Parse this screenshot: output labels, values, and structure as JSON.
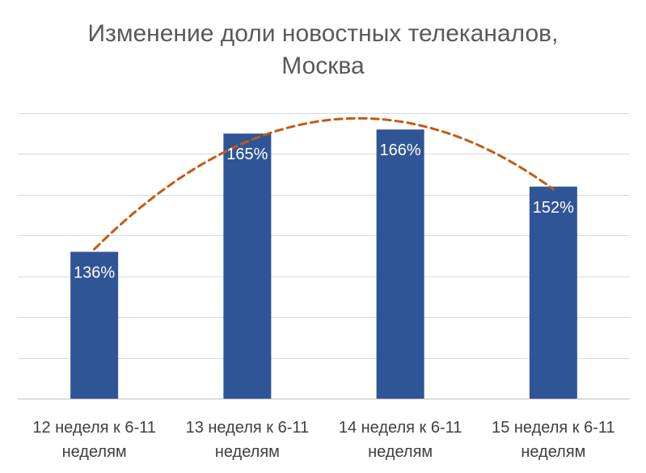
{
  "chart_data": {
    "type": "bar",
    "title_lines": [
      "Изменение доли новостных телеканалов,",
      "Москва"
    ],
    "categories": [
      [
        "12 неделя к 6-11",
        "неделям"
      ],
      [
        "13 неделя к 6-11",
        "неделям"
      ],
      [
        "14 неделя к 6-11",
        "неделям"
      ],
      [
        "15 неделя к 6-11",
        "неделям"
      ]
    ],
    "values": [
      136,
      165,
      166,
      152
    ],
    "value_labels": [
      "136%",
      "165%",
      "166%",
      "152%"
    ],
    "unit": "%",
    "ylim": [
      100,
      170
    ],
    "y_tick_step": 10,
    "y_tick_labels_visible": false,
    "grid": true,
    "trendline": {
      "type": "polynomial",
      "style": "dashed",
      "color": "#C55A11"
    },
    "colors": {
      "bar": "#2F5597",
      "grid": "#D9D9D9",
      "axis": "#BFBFBF",
      "title": "#595959",
      "category_label": "#404040",
      "data_label": "#FFFFFF"
    }
  }
}
